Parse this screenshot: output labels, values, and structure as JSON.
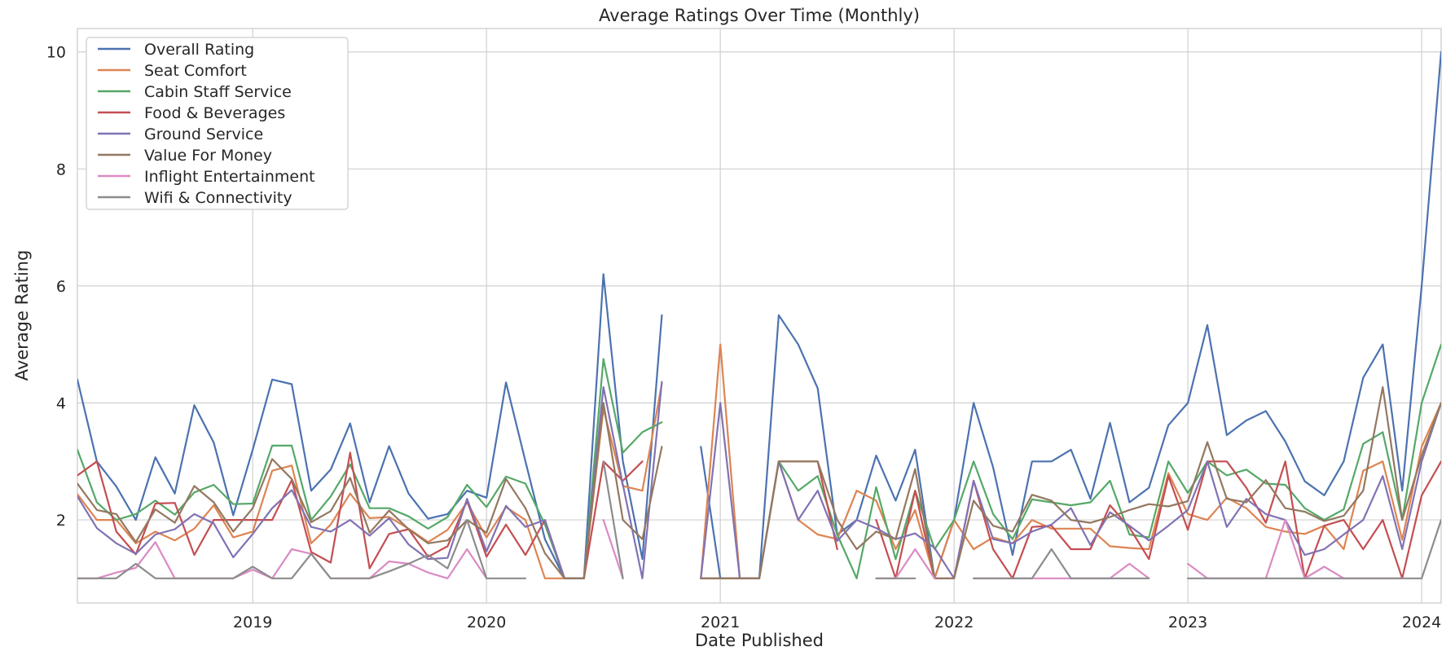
{
  "chart_data": {
    "type": "line",
    "title": "Average Ratings Over Time (Monthly)",
    "xlabel": "Date Published",
    "ylabel": "Average Rating",
    "xlim": [
      "2018-04",
      "2024-02"
    ],
    "ylim": [
      0.58,
      10.4
    ],
    "x_ticks": [
      "2019",
      "2020",
      "2021",
      "2022",
      "2023",
      "2024"
    ],
    "y_ticks": [
      2,
      4,
      6,
      8,
      10
    ],
    "grid": true,
    "legend_position": "upper-left",
    "x": [
      "2018-04",
      "2018-05",
      "2018-06",
      "2018-07",
      "2018-08",
      "2018-09",
      "2018-10",
      "2018-11",
      "2018-12",
      "2019-01",
      "2019-02",
      "2019-03",
      "2019-04",
      "2019-05",
      "2019-06",
      "2019-07",
      "2019-08",
      "2019-09",
      "2019-10",
      "2019-11",
      "2019-12",
      "2020-01",
      "2020-02",
      "2020-03",
      "2020-04",
      "2020-05",
      "2020-06",
      "2020-07",
      "2020-08",
      "2020-09",
      "2020-10",
      "2020-11",
      "2020-12",
      "2021-01",
      "2021-02",
      "2021-03",
      "2021-04",
      "2021-05",
      "2021-06",
      "2021-07",
      "2021-08",
      "2021-09",
      "2021-10",
      "2021-11",
      "2021-12",
      "2022-01",
      "2022-02",
      "2022-03",
      "2022-04",
      "2022-05",
      "2022-06",
      "2022-07",
      "2022-08",
      "2022-09",
      "2022-10",
      "2022-11",
      "2022-12",
      "2023-01",
      "2023-02",
      "2023-03",
      "2023-04",
      "2023-05",
      "2023-06",
      "2023-07",
      "2023-08",
      "2023-09",
      "2023-10",
      "2023-11",
      "2023-12",
      "2024-01",
      "2024-02"
    ],
    "series": [
      {
        "name": "Overall Rating",
        "color": "#4c72b0",
        "values": [
          4.4,
          3.0,
          2.57,
          2.0,
          3.07,
          2.45,
          3.96,
          3.32,
          2.08,
          3.2,
          4.4,
          4.32,
          2.5,
          2.86,
          3.65,
          2.3,
          3.26,
          2.45,
          2.02,
          2.1,
          2.5,
          2.38,
          4.35,
          3.0,
          1.67,
          1.0,
          1.0,
          6.2,
          3.0,
          1.33,
          5.5,
          null,
          3.25,
          1.0,
          1.0,
          1.0,
          5.5,
          5.0,
          4.25,
          1.75,
          2.0,
          3.1,
          2.33,
          3.2,
          1.0,
          2.0,
          4.0,
          2.9,
          1.4,
          3.0,
          3.0,
          3.2,
          2.36,
          3.66,
          2.3,
          2.55,
          3.62,
          4.0,
          5.33,
          3.45,
          3.7,
          3.86,
          3.34,
          2.66,
          2.42,
          3.0,
          4.43,
          5.0,
          2.5,
          6.0,
          10.0
        ]
      },
      {
        "name": "Seat Comfort",
        "color": "#dd8452",
        "values": [
          2.44,
          2.0,
          2.0,
          1.6,
          1.8,
          1.65,
          1.85,
          2.25,
          1.7,
          1.8,
          2.84,
          2.93,
          1.6,
          1.92,
          2.45,
          2.03,
          2.05,
          1.85,
          1.62,
          1.83,
          2.3,
          1.7,
          2.22,
          2.0,
          1.0,
          1.0,
          1.0,
          3.9,
          2.58,
          2.5,
          4.33,
          null,
          1.0,
          5.0,
          1.0,
          1.0,
          3.0,
          2.0,
          1.75,
          1.67,
          2.5,
          2.33,
          1.5,
          2.17,
          1.0,
          2.0,
          1.5,
          1.7,
          1.6,
          2.0,
          1.85,
          1.85,
          1.85,
          1.55,
          1.52,
          1.5,
          2.8,
          2.1,
          2.0,
          2.38,
          2.2,
          1.88,
          1.8,
          1.76,
          1.9,
          1.5,
          2.84,
          3.0,
          1.66,
          3.25,
          4.0
        ]
      },
      {
        "name": "Cabin Staff Service",
        "color": "#55a868",
        "values": [
          3.2,
          2.3,
          2.0,
          2.1,
          2.33,
          2.09,
          2.47,
          2.6,
          2.27,
          2.28,
          3.27,
          3.27,
          2.0,
          2.4,
          2.95,
          2.2,
          2.2,
          2.06,
          1.85,
          2.05,
          2.6,
          2.22,
          2.74,
          2.62,
          1.92,
          1.0,
          1.0,
          4.75,
          3.15,
          3.5,
          3.67,
          null,
          1.0,
          1.0,
          1.0,
          1.0,
          3.0,
          2.5,
          2.75,
          1.75,
          1.0,
          2.56,
          1.33,
          2.5,
          1.5,
          2.0,
          3.0,
          2.1,
          1.67,
          2.35,
          2.3,
          2.25,
          2.3,
          2.67,
          1.75,
          1.7,
          3.0,
          2.46,
          3.0,
          2.76,
          2.86,
          2.62,
          2.6,
          2.2,
          2.0,
          2.18,
          3.3,
          3.5,
          2.0,
          4.0,
          5.0
        ]
      },
      {
        "name": "Food & Beverages",
        "color": "#c44e52",
        "values": [
          2.76,
          3.0,
          1.8,
          1.41,
          2.28,
          2.29,
          1.4,
          2.0,
          2.0,
          2.0,
          2.0,
          2.68,
          1.45,
          1.27,
          3.15,
          1.17,
          1.76,
          1.84,
          1.37,
          1.55,
          2.33,
          1.37,
          1.92,
          1.4,
          2.0,
          1.0,
          1.0,
          3.0,
          2.67,
          3.0,
          null,
          null,
          1.0,
          1.0,
          1.0,
          1.0,
          3.0,
          3.0,
          3.0,
          1.5,
          null,
          2.0,
          1.0,
          2.5,
          1.0,
          1.0,
          2.67,
          1.5,
          1.0,
          1.88,
          1.9,
          1.5,
          1.5,
          2.25,
          1.87,
          1.33,
          2.75,
          1.83,
          3.0,
          3.0,
          2.55,
          1.95,
          3.0,
          1.0,
          1.9,
          2.0,
          1.5,
          2.0,
          1.0,
          2.42,
          3.0
        ]
      },
      {
        "name": "Ground Service",
        "color": "#8172b3",
        "values": [
          2.4,
          1.86,
          1.6,
          1.42,
          1.75,
          1.84,
          2.1,
          1.94,
          1.36,
          1.76,
          2.2,
          2.51,
          1.88,
          1.8,
          2.0,
          1.73,
          2.03,
          1.58,
          1.33,
          1.35,
          2.36,
          1.46,
          2.24,
          1.88,
          2.0,
          1.0,
          1.0,
          4.27,
          2.6,
          1.0,
          4.36,
          null,
          1.0,
          4.0,
          1.0,
          1.0,
          3.0,
          2.0,
          2.5,
          1.64,
          2.0,
          1.86,
          1.67,
          1.77,
          1.52,
          1.0,
          2.67,
          1.67,
          1.6,
          1.8,
          1.92,
          2.2,
          1.57,
          2.13,
          1.9,
          1.65,
          1.9,
          2.17,
          3.0,
          1.88,
          2.36,
          2.1,
          2.0,
          1.4,
          1.5,
          1.75,
          2.0,
          2.75,
          1.5,
          3.0,
          4.0
        ]
      },
      {
        "name": "Value For Money",
        "color": "#937860",
        "values": [
          2.62,
          2.17,
          2.1,
          1.62,
          2.18,
          1.95,
          2.58,
          2.3,
          1.8,
          2.2,
          3.04,
          2.7,
          1.96,
          2.15,
          2.72,
          1.78,
          2.16,
          1.84,
          1.6,
          1.65,
          2.0,
          1.78,
          2.7,
          2.2,
          1.43,
          1.0,
          1.0,
          4.0,
          2.0,
          1.67,
          3.25,
          null,
          1.0,
          1.0,
          1.0,
          1.0,
          3.0,
          3.0,
          3.0,
          2.0,
          1.5,
          1.8,
          1.67,
          2.87,
          1.0,
          1.0,
          2.33,
          1.9,
          1.8,
          2.43,
          2.33,
          2.0,
          1.95,
          2.05,
          2.17,
          2.27,
          2.23,
          2.32,
          3.33,
          2.36,
          2.3,
          2.68,
          2.2,
          2.14,
          1.98,
          2.07,
          2.5,
          4.27,
          2.0,
          3.1,
          4.0
        ]
      },
      {
        "name": "Inflight Entertainment",
        "color": "#da8bc3",
        "values": [
          1.0,
          1.0,
          1.1,
          1.18,
          1.62,
          1.0,
          1.0,
          1.0,
          1.0,
          1.15,
          1.0,
          1.5,
          1.42,
          1.0,
          1.0,
          1.0,
          1.29,
          1.25,
          1.1,
          1.0,
          1.5,
          1.0,
          null,
          null,
          null,
          null,
          null,
          2.0,
          1.0,
          null,
          null,
          null,
          null,
          null,
          null,
          null,
          null,
          null,
          null,
          null,
          null,
          1.0,
          1.0,
          1.5,
          1.0,
          null,
          1.0,
          1.0,
          1.0,
          1.0,
          1.0,
          1.0,
          1.0,
          1.0,
          1.25,
          1.0,
          null,
          1.25,
          1.0,
          1.0,
          1.0,
          1.0,
          2.0,
          1.0,
          1.2,
          1.0,
          1.0,
          1.0,
          1.0,
          null,
          null
        ]
      },
      {
        "name": "Wifi & Connectivity",
        "color": "#8c8c8c",
        "values": [
          1.0,
          1.0,
          1.0,
          1.25,
          1.0,
          1.0,
          1.0,
          1.0,
          1.0,
          1.2,
          1.0,
          1.0,
          1.42,
          1.0,
          1.0,
          1.0,
          1.12,
          1.25,
          1.4,
          1.17,
          2.0,
          1.0,
          1.0,
          1.0,
          null,
          null,
          null,
          3.0,
          1.0,
          null,
          null,
          null,
          null,
          null,
          null,
          null,
          null,
          null,
          null,
          null,
          null,
          1.0,
          1.0,
          1.0,
          null,
          null,
          1.0,
          1.0,
          1.0,
          1.0,
          1.5,
          1.0,
          1.0,
          1.0,
          1.0,
          1.0,
          null,
          1.0,
          1.0,
          1.0,
          1.0,
          1.0,
          1.0,
          1.0,
          1.0,
          1.0,
          1.0,
          1.0,
          1.0,
          1.0,
          2.0
        ]
      }
    ]
  }
}
